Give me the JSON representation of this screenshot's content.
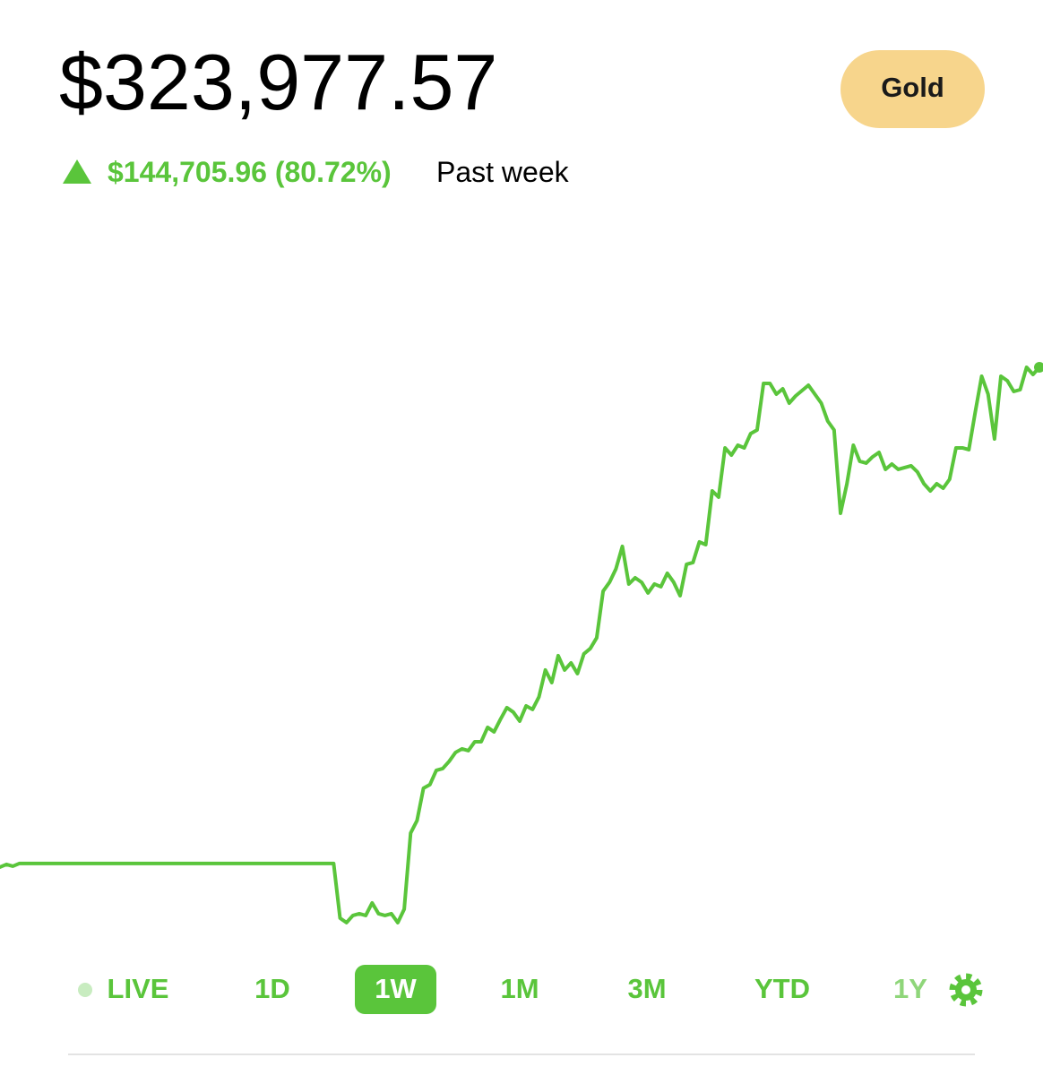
{
  "header": {
    "balance": "$323,977.57",
    "change": "$144,705.96 (80.72%)",
    "period": "Past week",
    "badge": "Gold"
  },
  "tabs": [
    "LIVE",
    "1D",
    "1W",
    "1M",
    "3M",
    "YTD",
    "1Y"
  ],
  "chart_data": {
    "type": "line",
    "color": "#5ac53b",
    "ylim": [
      154500,
      368300
    ],
    "values": [
      178507,
      179289,
      178768,
      179550,
      179550,
      179550,
      179550,
      179550,
      179550,
      179550,
      179550,
      179550,
      179550,
      179550,
      179550,
      179550,
      179550,
      179550,
      179550,
      179550,
      179550,
      179550,
      179550,
      179550,
      179550,
      179550,
      179550,
      179550,
      179550,
      179550,
      179550,
      179550,
      179550,
      179550,
      179550,
      179550,
      179550,
      179550,
      179550,
      179550,
      179550,
      179550,
      179550,
      179550,
      179550,
      179550,
      179550,
      179550,
      179550,
      179550,
      179550,
      179550,
      179550,
      163647,
      162344,
      164430,
      164951,
      164430,
      168079,
      164951,
      164430,
      164951,
      162344,
      166254,
      188414,
      192064,
      201449,
      202492,
      206663,
      207184,
      209270,
      211877,
      212920,
      212398,
      215005,
      215005,
      219177,
      217873,
      221523,
      224912,
      223608,
      221001,
      225433,
      224391,
      228040,
      235861,
      232212,
      240033,
      235861,
      237947,
      234819,
      240554,
      242118,
      245247,
      258803,
      261410,
      265320,
      271838,
      260889,
      262713,
      261410,
      258282,
      260889,
      260106,
      264017,
      261410,
      257499,
      266624,
      267145,
      273141,
      272359,
      288001,
      286176,
      300515,
      298429,
      301297,
      300515,
      304686,
      305729,
      319285,
      319285,
      316157,
      317721,
      313550,
      315636,
      317200,
      318764,
      316157,
      313550,
      308336,
      305729,
      281484,
      290087,
      301297,
      296604,
      296083,
      297908,
      299211,
      294258,
      295822,
      294258,
      294780,
      295301,
      293476,
      290087,
      288001,
      290087,
      288783,
      291390,
      300515,
      300515,
      299994,
      310943,
      321371,
      316157,
      303122,
      321371,
      320067,
      316939,
      317460,
      323978,
      321892,
      323978
    ]
  }
}
